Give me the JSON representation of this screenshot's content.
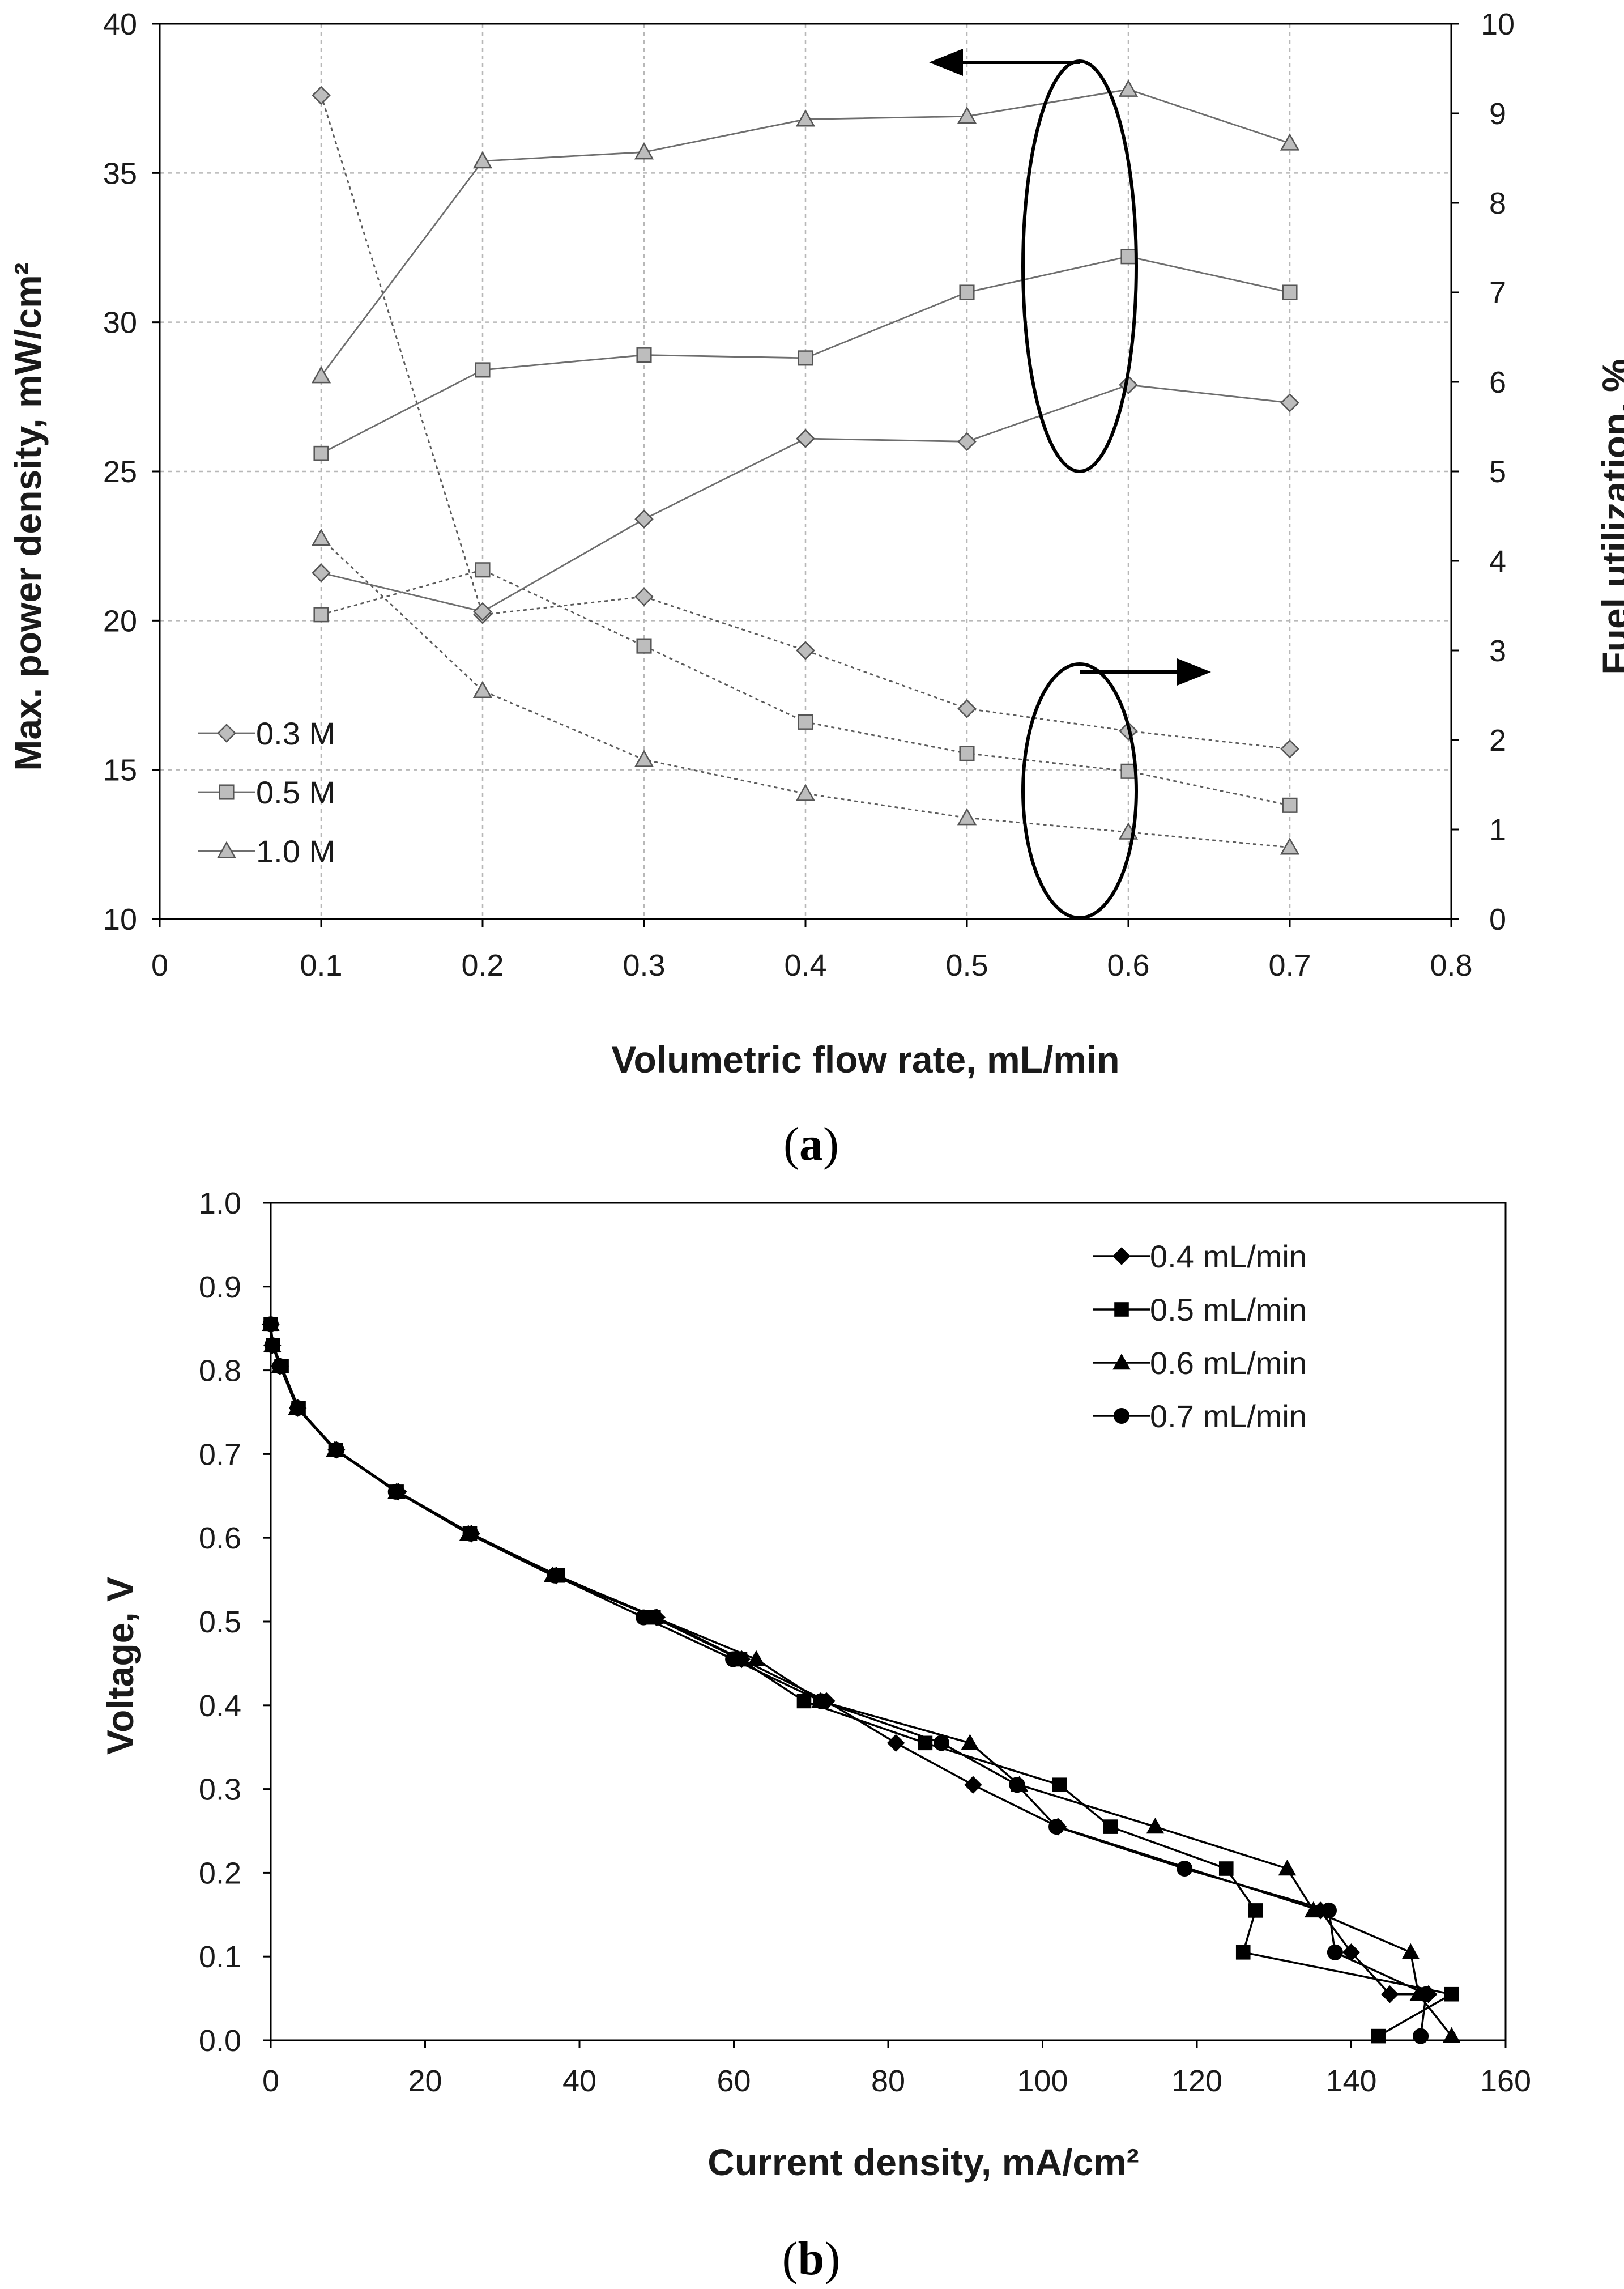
{
  "chart_data": [
    {
      "panel": "a",
      "type": "line",
      "panel_label": "a",
      "xlabel": "Volumetric flow rate, mL/min",
      "ylabel": "Max. power density, mW/cm²",
      "y2label": "Fuel utilization, %",
      "xlim": [
        0,
        0.8
      ],
      "ylim": [
        10,
        40
      ],
      "y2lim": [
        0,
        10
      ],
      "xticks": [
        "0",
        "0.1",
        "0.2",
        "0.3",
        "0.4",
        "0.5",
        "0.6",
        "0.7",
        "0.8"
      ],
      "yticks": [
        "10",
        "15",
        "20",
        "25",
        "30",
        "35",
        "40"
      ],
      "y2ticks": [
        "0",
        "1",
        "2",
        "3",
        "4",
        "5",
        "6",
        "7",
        "8",
        "9",
        "10"
      ],
      "grid": true,
      "legend_position": "bottom-left",
      "x": [
        0.1,
        0.2,
        0.3,
        0.4,
        0.5,
        0.6,
        0.7
      ],
      "series": [
        {
          "name": "0.3 M",
          "marker": "diamond",
          "axis": "left",
          "style": "solid",
          "values": [
            21.6,
            20.3,
            23.4,
            26.1,
            26.0,
            27.9,
            27.3
          ]
        },
        {
          "name": "0.5 M",
          "marker": "square",
          "axis": "left",
          "style": "solid",
          "values": [
            25.6,
            28.4,
            28.9,
            28.8,
            31.0,
            32.2,
            31.0
          ]
        },
        {
          "name": "1.0 M",
          "marker": "triangle",
          "axis": "left",
          "style": "solid",
          "values": [
            28.2,
            35.4,
            35.7,
            36.8,
            36.9,
            37.8,
            36.0
          ]
        },
        {
          "name": "0.3 M",
          "marker": "diamond",
          "axis": "right",
          "style": "dashed",
          "values": [
            9.2,
            3.4,
            3.6,
            3.0,
            2.35,
            2.1,
            1.9
          ]
        },
        {
          "name": "0.5 M",
          "marker": "square",
          "axis": "right",
          "style": "dashed",
          "values": [
            3.4,
            3.9,
            3.05,
            2.2,
            1.85,
            1.65,
            1.27
          ]
        },
        {
          "name": "1.0 M",
          "marker": "triangle",
          "axis": "right",
          "style": "dashed",
          "values": [
            4.25,
            2.55,
            1.78,
            1.4,
            1.13,
            0.97,
            0.8
          ]
        }
      ],
      "legend": [
        "0.3 M",
        "0.5 M",
        "1.0 M"
      ],
      "annotations": [
        {
          "type": "ellipse-with-arrow",
          "points_to": "left axis",
          "series_group": "solid lines"
        },
        {
          "type": "ellipse-with-arrow",
          "points_to": "right axis",
          "series_group": "dashed lines"
        }
      ]
    },
    {
      "panel": "b",
      "type": "line",
      "panel_label": "b",
      "xlabel": "Current density, mA/cm²",
      "ylabel": "Voltage, V",
      "xlim": [
        0,
        160
      ],
      "ylim": [
        0.0,
        1.0
      ],
      "xticks": [
        "0",
        "20",
        "40",
        "60",
        "80",
        "100",
        "120",
        "140",
        "160"
      ],
      "yticks": [
        "0.0",
        "0.1",
        "0.2",
        "0.3",
        "0.4",
        "0.5",
        "0.6",
        "0.7",
        "0.8",
        "0.9",
        "1.0"
      ],
      "grid": false,
      "legend_position": "top-right",
      "series": [
        {
          "name": "0.4 mL/min",
          "marker": "diamond",
          "x": [
            0,
            0.2,
            1.2,
            3.5,
            8.5,
            16.5,
            26,
            37,
            50,
            61,
            72,
            81,
            91,
            102,
            136,
            140,
            145,
            150
          ],
          "y": [
            0.855,
            0.83,
            0.805,
            0.755,
            0.705,
            0.655,
            0.605,
            0.555,
            0.505,
            0.455,
            0.405,
            0.355,
            0.305,
            0.255,
            0.155,
            0.105,
            0.055,
            0.055
          ]
        },
        {
          "name": "0.5 mL/min",
          "marker": "square",
          "x": [
            0,
            0.3,
            1.4,
            3.6,
            8.4,
            16.3,
            25.8,
            37.2,
            49.6,
            60.8,
            69.1,
            84.8,
            102.2,
            108.8,
            123.8,
            127.6,
            126.0,
            153.0,
            143.5
          ],
          "y": [
            0.855,
            0.83,
            0.805,
            0.755,
            0.705,
            0.655,
            0.605,
            0.555,
            0.505,
            0.455,
            0.405,
            0.355,
            0.305,
            0.255,
            0.205,
            0.155,
            0.105,
            0.055,
            0.005
          ]
        },
        {
          "name": "0.6 mL/min",
          "marker": "triangle",
          "x": [
            0,
            0.2,
            1.2,
            3.4,
            8.3,
            16.3,
            25.6,
            36.5,
            49.8,
            62.9,
            71.2,
            90.6,
            97.0,
            114.6,
            131.7,
            135.1,
            147.7,
            148.7,
            153.0
          ],
          "y": [
            0.855,
            0.83,
            0.805,
            0.755,
            0.705,
            0.655,
            0.605,
            0.555,
            0.505,
            0.455,
            0.405,
            0.355,
            0.305,
            0.255,
            0.205,
            0.155,
            0.105,
            0.055,
            0.005
          ]
        },
        {
          "name": "0.7 mL/min",
          "marker": "circle",
          "x": [
            0,
            0.2,
            1.2,
            3.5,
            8.5,
            16.2,
            25.9,
            36.8,
            48.3,
            59.9,
            71.3,
            86.9,
            96.7,
            101.8,
            118.4,
            137.1,
            137.9,
            149.7,
            149.0
          ],
          "y": [
            0.855,
            0.83,
            0.805,
            0.755,
            0.705,
            0.655,
            0.605,
            0.555,
            0.505,
            0.455,
            0.405,
            0.355,
            0.305,
            0.255,
            0.205,
            0.155,
            0.105,
            0.055,
            0.005
          ]
        }
      ],
      "legend": [
        "0.4 mL/min",
        "0.5 mL/min",
        "0.6 mL/min",
        "0.7 mL/min"
      ]
    }
  ]
}
